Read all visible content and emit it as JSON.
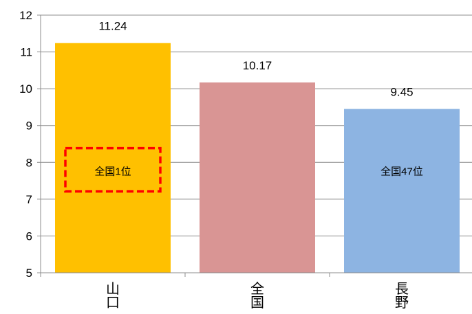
{
  "chart_data": {
    "type": "bar",
    "categories": [
      "山口",
      "全国",
      "長野"
    ],
    "values": [
      11.24,
      10.17,
      9.45
    ],
    "value_labels": [
      "11.24",
      "10.17",
      "9.45"
    ],
    "colors": [
      "#ffc000",
      "#d99594",
      "#8db4e2"
    ],
    "ylim": [
      5,
      12
    ],
    "yticks": [
      5,
      6,
      7,
      8,
      9,
      10,
      11,
      12
    ],
    "grid": true,
    "title": "",
    "xlabel": "",
    "ylabel": "",
    "annotations": [
      {
        "category_index": 0,
        "text": "全国1位",
        "highlighted": true,
        "y": 7.75
      },
      {
        "category_index": 2,
        "text": "全国47位",
        "highlighted": false,
        "y": 7.75
      }
    ],
    "highlight_color": "#ff0000"
  }
}
